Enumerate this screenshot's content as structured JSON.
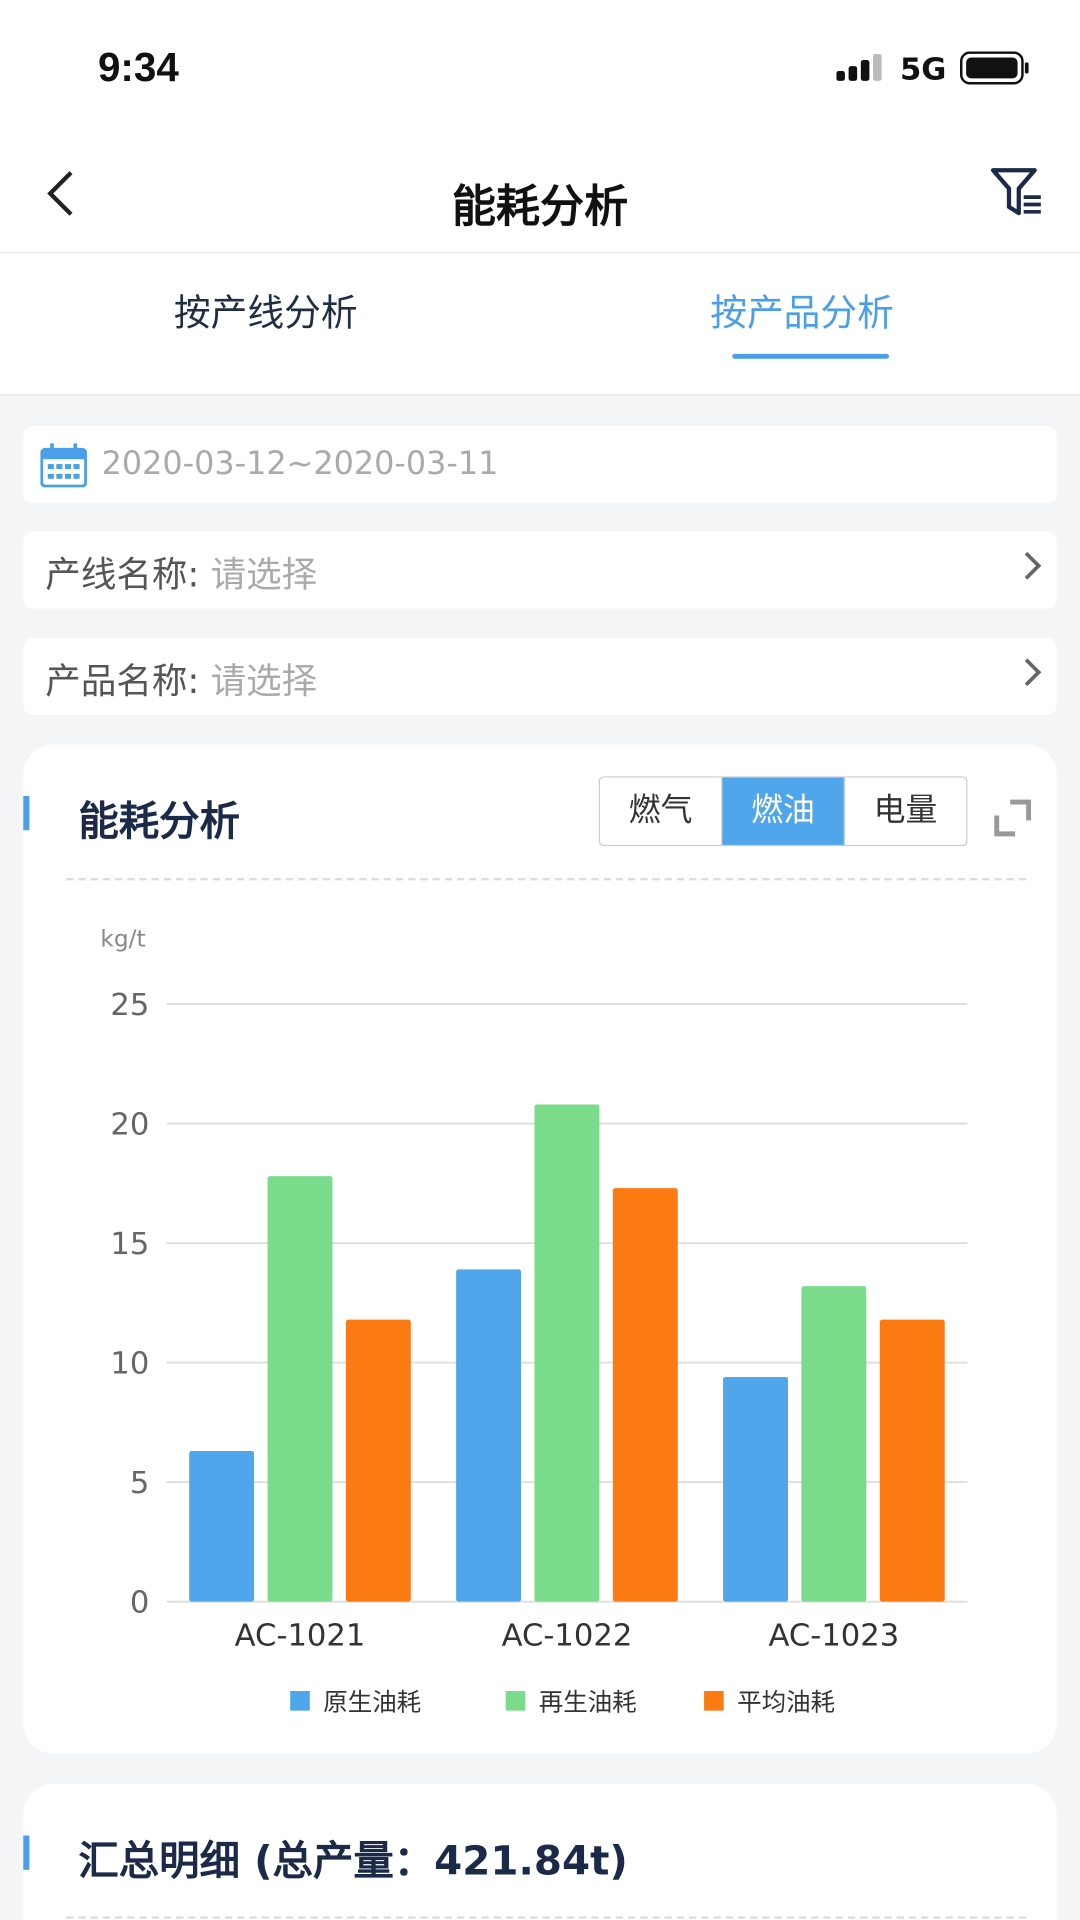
{
  "status_bar": {
    "time": "9:34",
    "network": "5G"
  },
  "nav": {
    "title": "能耗分析",
    "back_icon": "chevron-left-icon",
    "filter_icon": "filter-icon"
  },
  "tabs": [
    {
      "label": "按产线分析",
      "active": false
    },
    {
      "label": "按产品分析",
      "active": true
    }
  ],
  "filters": {
    "date_range": "2020-03-12~2020-03-11",
    "line": {
      "label": "产线名称:",
      "placeholder": "请选择"
    },
    "product": {
      "label": "产品名称:",
      "placeholder": "请选择"
    }
  },
  "chart_card": {
    "title": "能耗分析",
    "segments": [
      {
        "label": "燃气",
        "active": false
      },
      {
        "label": "燃油",
        "active": true
      },
      {
        "label": "电量",
        "active": false
      }
    ]
  },
  "chart_data": {
    "type": "bar",
    "ylabel": "kg/t",
    "ylim": [
      0,
      25
    ],
    "yticks": [
      "0",
      "5",
      "10",
      "15",
      "20",
      "25"
    ],
    "grid": true,
    "legend_placement": "bottom",
    "categories": [
      "AC-1021",
      "AC-1022",
      "AC-1023"
    ],
    "series": [
      {
        "name": "原生油耗",
        "color": "#4fa6ea",
        "values": [
          6.3,
          13.9,
          9.4
        ]
      },
      {
        "name": "再生油耗",
        "color": "#7adb8a",
        "values": [
          17.8,
          20.8,
          13.2
        ]
      },
      {
        "name": "平均油耗",
        "color": "#fb7a12",
        "values": [
          11.8,
          17.3,
          11.8
        ]
      }
    ]
  },
  "summary_card": {
    "title": "汇总明细 (总产量：421.84t)"
  }
}
